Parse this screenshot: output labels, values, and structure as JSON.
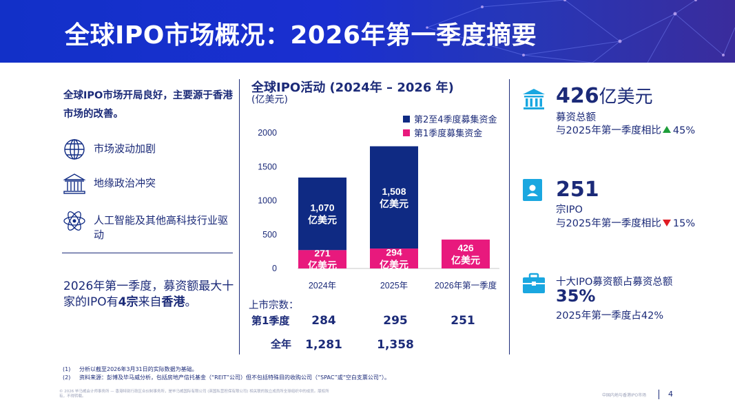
{
  "header": {
    "title": "全球IPO市场概况：2026年第一季度摘要"
  },
  "left": {
    "intro": "全球IPO市场开局良好，主要源于香港市场的改善。",
    "drivers": [
      {
        "label": "市场波动加剧",
        "icon": "globe-icon"
      },
      {
        "label": "地缘政治冲突",
        "icon": "capitol-building-icon"
      },
      {
        "label": "人工智能及其他高科技行业驱动",
        "icon": "atom-icon"
      }
    ],
    "note_part1": "2026年第一季度，募资额最大十家的IPO有",
    "note_bold1": "4宗",
    "note_part2": "来自",
    "note_bold2": "香港",
    "note_part3": "。"
  },
  "chart_data": {
    "type": "bar",
    "stacked": true,
    "title": "全球IPO活动 (2024年 – 2026 年)",
    "ylabel": "(亿美元)",
    "categories": [
      "2024年",
      "2025年",
      "2026年第一季度"
    ],
    "series": [
      {
        "name": "第1季度募集资金",
        "color": "#e8197d",
        "values": [
          271,
          294,
          426
        ],
        "labels": [
          [
            "271",
            "亿美元"
          ],
          [
            "294",
            "亿美元"
          ],
          [
            "426",
            "亿美元"
          ]
        ]
      },
      {
        "name": "第2至4季度募集资金",
        "color": "#0f2a83",
        "values": [
          1070,
          1508,
          0
        ],
        "labels": [
          [
            "1,070",
            "亿美元"
          ],
          [
            "1,508",
            "亿美元"
          ],
          null
        ]
      }
    ],
    "legend_order": [
      "第2至4季度募集资金",
      "第1季度募集资金"
    ],
    "legend_position": "top-right",
    "yticks": [
      0,
      500,
      1000,
      1500,
      2000
    ],
    "ylim": [
      0,
      2000
    ],
    "grid": false
  },
  "listings": {
    "title": "上市宗数：",
    "rows": [
      {
        "label": "第1季度",
        "values": [
          "284",
          "295",
          "251"
        ]
      },
      {
        "label": "全年",
        "values": [
          "1,281",
          "1,358",
          ""
        ]
      }
    ]
  },
  "kpis": [
    {
      "icon": "bank-icon",
      "big_num": "426",
      "big_unit": "亿美元",
      "line1": "募资总额",
      "line2_prefix": "与2025年第一季度相比",
      "direction": "up",
      "change": "45%"
    },
    {
      "icon": "id-card-icon",
      "big_num": "251",
      "big_unit": "",
      "line1": "宗IPO",
      "line2_prefix": "与2025年第一季度相比",
      "direction": "down",
      "change": "15%"
    },
    {
      "icon": "briefcase-icon",
      "line1": "十大IPO募资额占募资总额",
      "big_num": "35%",
      "line3": "2025年第一季度占42%"
    }
  ],
  "footnotes": [
    {
      "num": "(1)",
      "text": "分析以截至2026年3月31日的实际数据为基础。"
    },
    {
      "num": "(2)",
      "text": "资料来源：彭博及毕马威分析，包括房地产信托基金（“REIT”公司）但不包括特殊目的收购公司（“SPAC”或“空白支票公司”）。"
    }
  ],
  "footer": {
    "copyright": "© 2026 毕马威会计师事务所 — 香港特别行政区合伙制事务所，是毕马威国际有限公司 (英国私营担保有限公司) 相关联的独立成员所全球组织中的成员。版权所有，不得转载。",
    "source": "中国内地与香港IPO市场",
    "page": "4"
  },
  "colors": {
    "navy": "#0f2a83",
    "pink": "#e8197d",
    "accent_icon": "#1aa7e0",
    "up": "#1e9e3a",
    "down": "#e01b23"
  }
}
